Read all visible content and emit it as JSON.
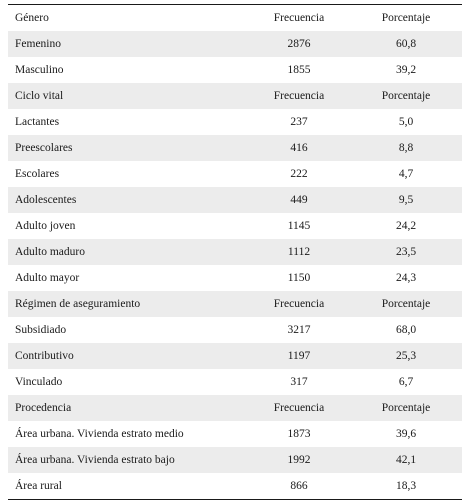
{
  "table": {
    "rows": [
      {
        "label": "Género",
        "freq": "Frecuencia",
        "pct": "Porcentaje",
        "header": true,
        "shaded": false
      },
      {
        "label": "Femenino",
        "freq": "2876",
        "pct": "60,8",
        "shaded": true
      },
      {
        "label": "Masculino",
        "freq": "1855",
        "pct": "39,2",
        "shaded": false
      },
      {
        "label": "Ciclo vital",
        "freq": "Frecuencia",
        "pct": "Porcentaje",
        "header": true,
        "shaded": true
      },
      {
        "label": "Lactantes",
        "freq": "237",
        "pct": "5,0",
        "shaded": false
      },
      {
        "label": "Preescolares",
        "freq": "416",
        "pct": "8,8",
        "shaded": true
      },
      {
        "label": "Escolares",
        "freq": "222",
        "pct": "4,7",
        "shaded": false
      },
      {
        "label": "Adolescentes",
        "freq": "449",
        "pct": "9,5",
        "shaded": true
      },
      {
        "label": "Adulto joven",
        "freq": "1145",
        "pct": "24,2",
        "shaded": false
      },
      {
        "label": "Adulto maduro",
        "freq": "1112",
        "pct": "23,5",
        "shaded": true
      },
      {
        "label": "Adulto mayor",
        "freq": "1150",
        "pct": "24,3",
        "shaded": false
      },
      {
        "label": "Régimen de aseguramiento",
        "freq": "Frecuencia",
        "pct": "Porcentaje",
        "header": true,
        "shaded": true
      },
      {
        "label": "Subsidiado",
        "freq": "3217",
        "pct": "68,0",
        "shaded": false
      },
      {
        "label": "Contributivo",
        "freq": "1197",
        "pct": "25,3",
        "shaded": true
      },
      {
        "label": "Vinculado",
        "freq": "317",
        "pct": "6,7",
        "shaded": false
      },
      {
        "label": "Procedencia",
        "freq": "Frecuencia",
        "pct": "Porcentaje",
        "header": true,
        "shaded": true
      },
      {
        "label": "Área urbana. Vivienda estrato medio",
        "freq": "1873",
        "pct": "39,6",
        "shaded": false
      },
      {
        "label": "Área urbana. Vivienda estrato bajo",
        "freq": "1992",
        "pct": "42,1",
        "shaded": true
      },
      {
        "label": "Área rural",
        "freq": "866",
        "pct": "18,3",
        "shaded": false
      }
    ]
  }
}
